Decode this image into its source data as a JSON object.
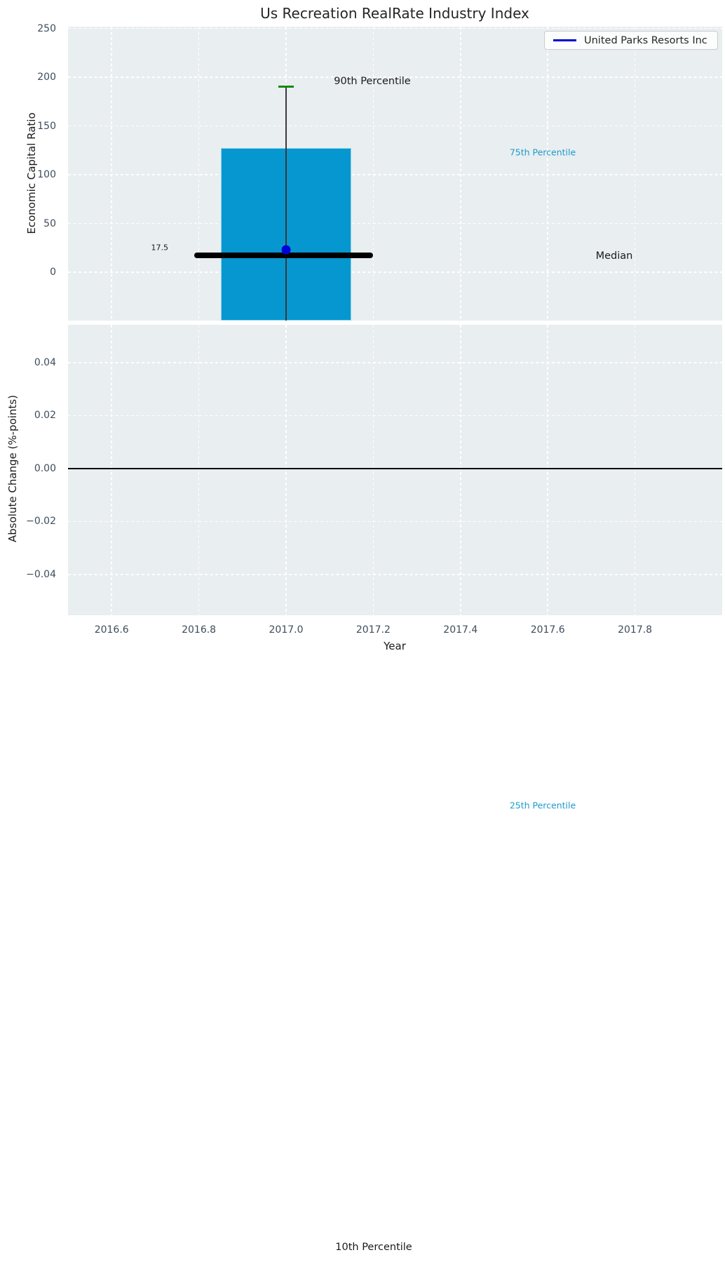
{
  "figure": {
    "title": "Us Recreation RealRate Industry Index"
  },
  "legend": {
    "label": "United Parks Resorts Inc"
  },
  "axes": {
    "top": {
      "ylabel": "Economic Capital Ratio",
      "ytick_labels": [
        "250",
        "200",
        "150",
        "100",
        "50",
        "0"
      ]
    },
    "bottom": {
      "ylabel": "Absolute Change (%-points)",
      "ytick_labels": [
        "0.04",
        "0.02",
        "0.00",
        "−0.02",
        "−0.04"
      ]
    },
    "x": {
      "label": "Year",
      "tick_labels": [
        "2016.6",
        "2016.8",
        "2017.0",
        "2017.2",
        "2017.4",
        "2017.6",
        "2017.8"
      ]
    }
  },
  "annotations": {
    "p90": {
      "text": "90th Percentile",
      "color": "#1a1a1a"
    },
    "p75": {
      "text": "75th Percentile",
      "color": "#1d9bcb"
    },
    "median_value": {
      "text": "17.5",
      "color": "#1a1a1a"
    },
    "median": {
      "text": "Median",
      "color": "#1a1a1a"
    },
    "p25": {
      "text": "25th Percentile",
      "color": "#1d9bcb"
    },
    "p10": {
      "text": "10th Percentile",
      "color": "#1a1a1a"
    }
  },
  "colors": {
    "axes_bg": "#e9eef0",
    "grid": "#ffffff",
    "bar": "#0697d0",
    "bar_edge": "#93d4ec",
    "whisker": "#3a3a3a",
    "p90_cap": "#128a12",
    "median_line": "#000000",
    "company_point": "#0000dc",
    "legend_line": "#0000d0",
    "zero_line": "#000000",
    "tick_text": "#3e4c5c"
  },
  "chart_data": {
    "type": "box",
    "title": "Us Recreation RealRate Industry Index",
    "xlabel": "Year",
    "xlim": [
      2016.5,
      2018.0
    ],
    "xticks": [
      2016.6,
      2016.8,
      2017.0,
      2017.2,
      2017.4,
      2017.6,
      2017.8
    ],
    "grid": true,
    "legend_position": "upper right",
    "panels": [
      {
        "name": "economic_capital_ratio",
        "ylabel": "Economic Capital Ratio",
        "ylim": [
          -49.6,
          251.8
        ],
        "yticks": [
          0,
          50,
          100,
          150,
          200,
          250
        ],
        "box": {
          "x_center": 2017.0,
          "bar_x_range": [
            2016.85,
            2017.15
          ],
          "p90": 190,
          "p75": 127,
          "median": 17.5,
          "median_line_x_range": [
            2016.79,
            2017.2
          ],
          "p25_clipped_below_axis": true,
          "p10_clipped_below_axis": true
        },
        "company_point": {
          "name": "United Parks Resorts Inc",
          "x": 2017.0,
          "y": 23
        }
      },
      {
        "name": "absolute_change",
        "ylabel": "Absolute Change (%-points)",
        "ylim": [
          -0.0554,
          0.0543
        ],
        "yticks": [
          -0.04,
          -0.02,
          0.0,
          0.02,
          0.04
        ],
        "zero_line": 0.0,
        "series": []
      }
    ]
  }
}
